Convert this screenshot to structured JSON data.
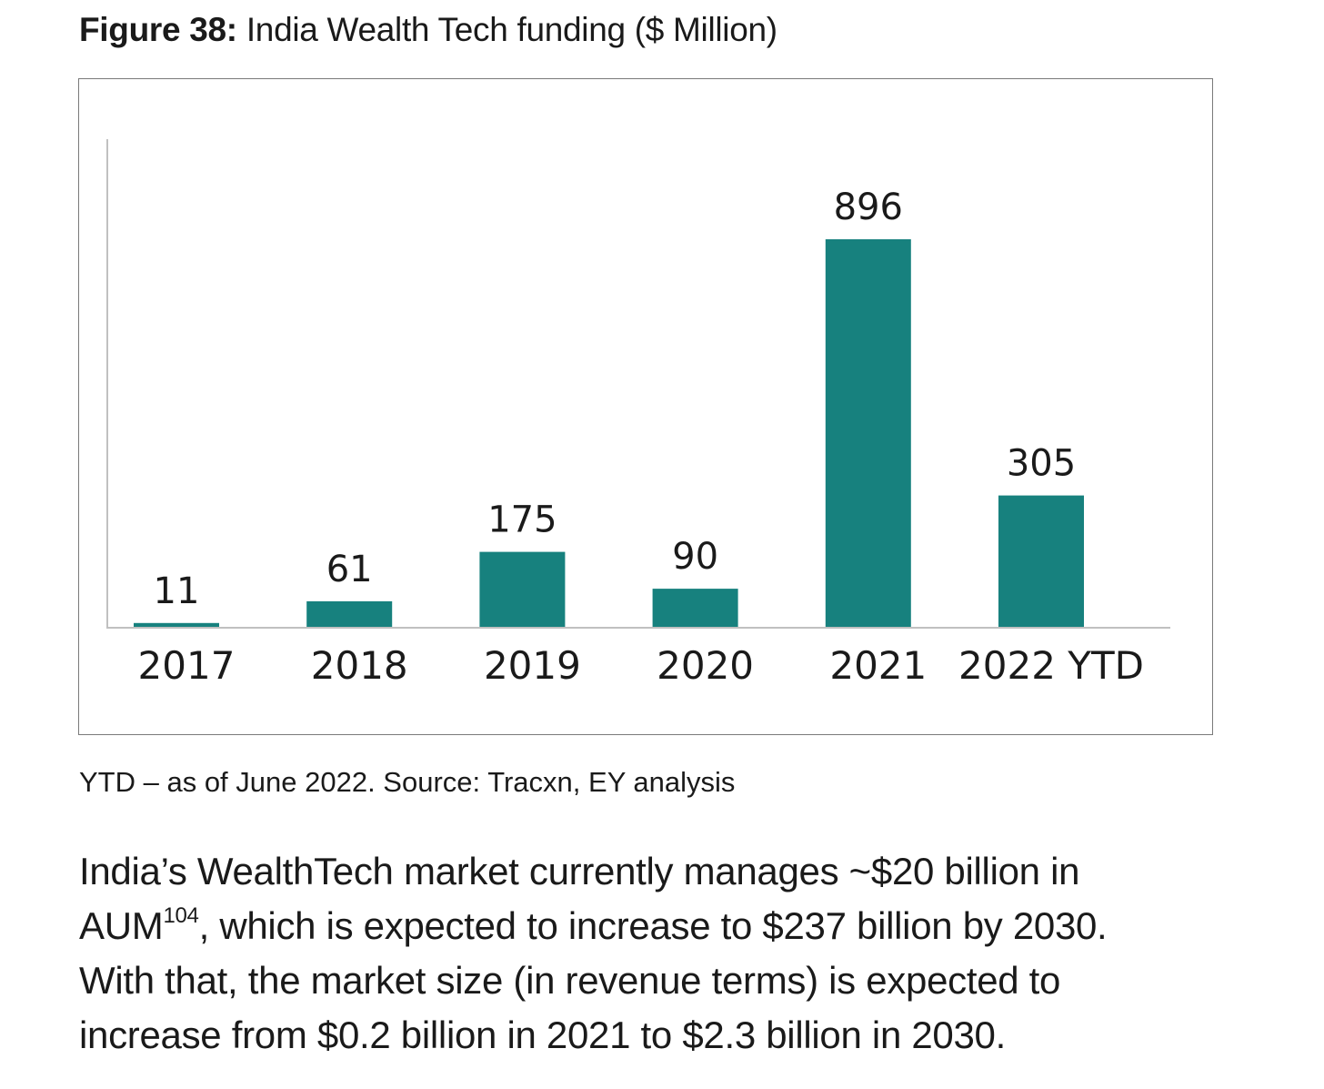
{
  "figure": {
    "label": "Figure 38:",
    "title": "India Wealth Tech funding ($ Million)"
  },
  "chart_data": {
    "type": "bar",
    "categories": [
      "2017",
      "2018",
      "2019",
      "2020",
      "2021",
      "2022 YTD"
    ],
    "values": [
      11,
      61,
      175,
      90,
      896,
      305
    ],
    "data_labels": [
      "11",
      "61",
      "175",
      "90",
      "896",
      "305"
    ],
    "bar_color": "#17817e",
    "axis_color": "#c0c0c0",
    "ylim": [
      0,
      896
    ],
    "grid": false,
    "legend": "none"
  },
  "source_note": "YTD – as of June 2022. Source: Tracxn, EY analysis",
  "body": {
    "line1": "India’s WealthTech market currently manages ~$20 billion in",
    "line2_pre": "AUM",
    "line2_sup": "104",
    "line2_post": ", which is expected to increase to $237 billion by 2030.",
    "line3": "With that, the market size (in revenue terms) is expected to",
    "line4": "increase from $0.2 billion in 2021 to $2.3 billion in 2030."
  }
}
